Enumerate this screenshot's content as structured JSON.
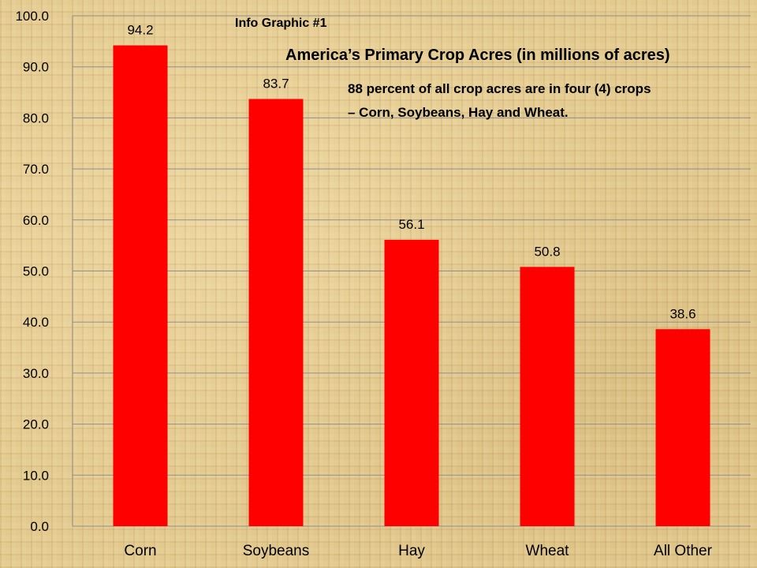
{
  "chart_data": {
    "type": "bar",
    "subtitle": "Info Graphic #1",
    "title": "America’s Primary Crop Acres (in millions of acres)",
    "annotation_lines": [
      "88 percent of all crop acres are in four (4) crops",
      "– Corn, Soybeans, Hay and Wheat."
    ],
    "categories": [
      "Corn",
      "Soybeans",
      "Hay",
      "Wheat",
      "All Other"
    ],
    "values": [
      94.2,
      83.7,
      56.1,
      50.8,
      38.6
    ],
    "value_labels": [
      "94.2",
      "83.7",
      "56.1",
      "50.8",
      "38.6"
    ],
    "ylim": [
      0,
      100
    ],
    "yticks": [
      "0.0",
      "10.0",
      "20.0",
      "30.0",
      "40.0",
      "50.0",
      "60.0",
      "70.0",
      "80.0",
      "90.0",
      "100.0"
    ],
    "xlabel": "",
    "ylabel": "",
    "grid": true,
    "legend": "none",
    "bar_color": "#ff0000"
  }
}
